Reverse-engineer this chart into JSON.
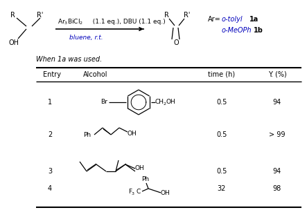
{
  "fig_width": 4.43,
  "fig_height": 3.04,
  "dpi": 100,
  "bg_color": "#ffffff",
  "font_color": "#000000",
  "blue_color": "#0000bb",
  "fs_reaction": 7.0,
  "fs_table": 7.0,
  "fs_struct": 6.5,
  "table_entries": [
    {
      "entry": "1",
      "time": "0.5",
      "yield": "94"
    },
    {
      "entry": "2",
      "time": "0.5",
      "yield": "> 99"
    },
    {
      "entry": "3",
      "time": "0.5",
      "yield": "94"
    },
    {
      "entry": "4",
      "time": "32",
      "yield": "98"
    }
  ]
}
